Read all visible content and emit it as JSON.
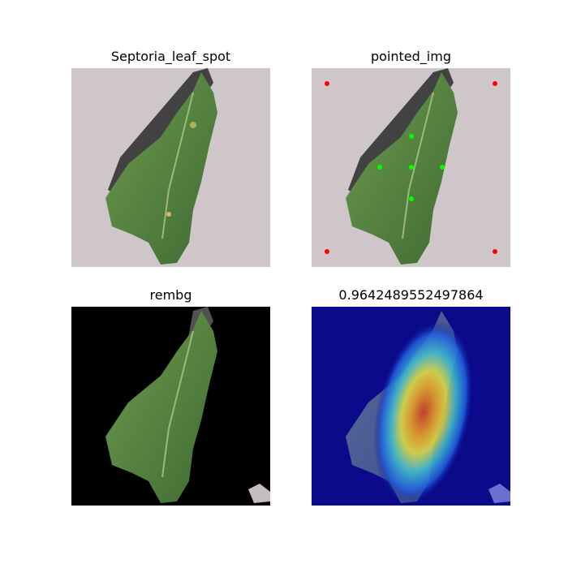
{
  "figure": {
    "panels": [
      {
        "title": "Septoria_leaf_spot",
        "image": "original-leaf-photo"
      },
      {
        "title": "pointed_img",
        "image": "leaf-photo-with-points",
        "markers": {
          "corner_color": "#ff0000",
          "center_color": "#00ff00",
          "corner_count": 4,
          "center_count": 5
        }
      },
      {
        "title": "rembg",
        "image": "leaf-background-removed"
      },
      {
        "title": "0.9642489552497864",
        "image": "leaf-heatmap-overlay"
      }
    ],
    "colors": {
      "background_gray": "#cfc6c9",
      "leaf_green": "#4e7a3d",
      "heat_blue": "#0a0a8a",
      "heat_red": "#d63c1c"
    }
  }
}
